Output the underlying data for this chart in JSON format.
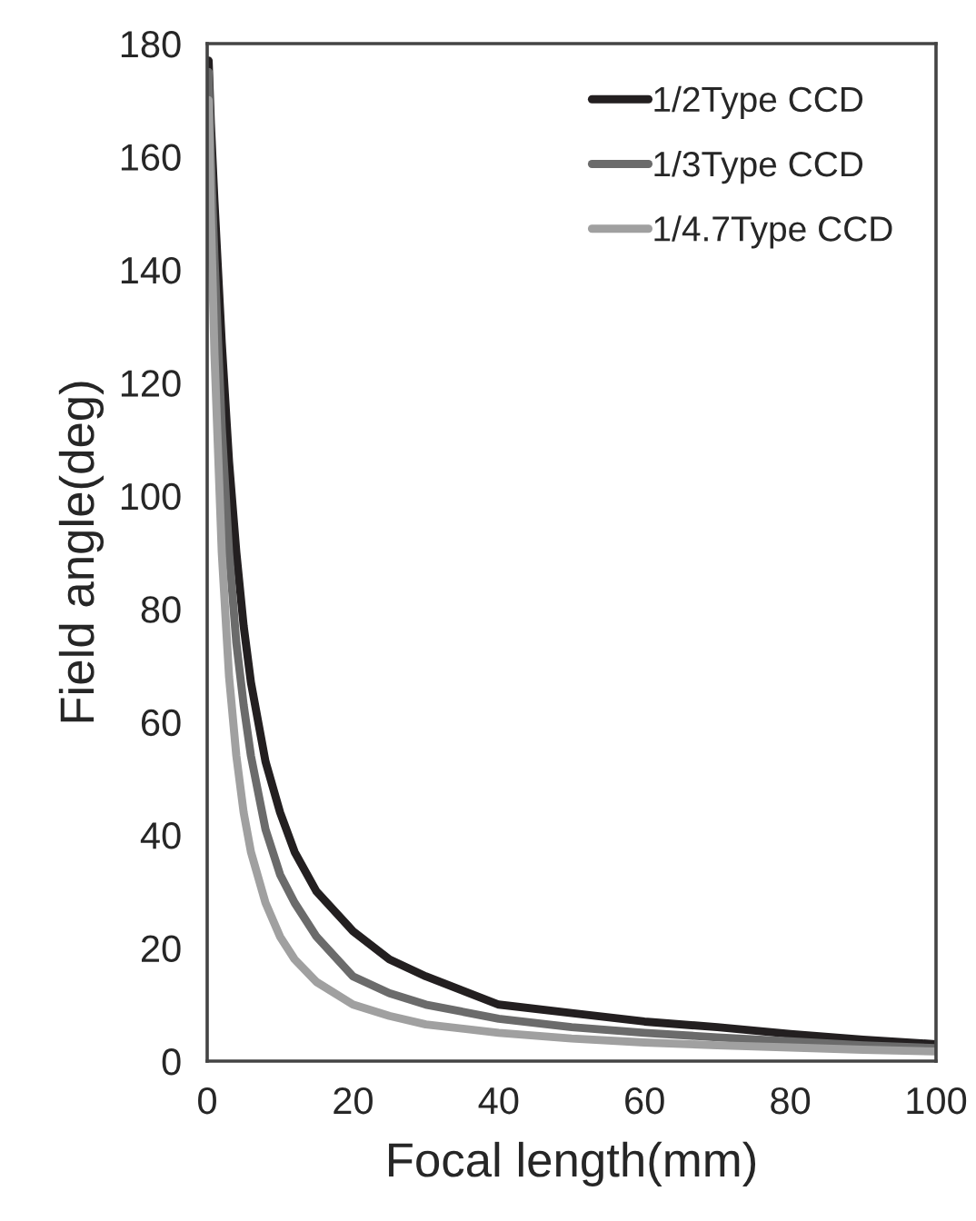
{
  "chart_data": {
    "type": "line",
    "xlabel": "Focal length(mm)",
    "ylabel": "Field angle(deg)",
    "x": [
      0.2,
      0.5,
      1,
      2,
      3,
      4,
      5,
      6,
      8,
      10,
      12,
      15,
      20,
      25,
      30,
      40,
      50,
      60,
      70,
      80,
      90,
      100
    ],
    "series": [
      {
        "name": "1/2Type CCD",
        "color": "#231f20",
        "values": [
          177,
          166,
          152,
          127,
          106,
          90,
          77,
          67,
          53,
          44,
          37,
          30,
          23,
          18,
          15,
          10,
          8.5,
          7,
          6,
          4.8,
          3.8,
          3
        ]
      },
      {
        "name": "1/3Type CCD",
        "color": "#6b6b6b",
        "values": [
          175,
          160,
          142,
          112,
          90,
          74,
          63,
          54,
          41,
          33,
          28,
          22,
          15,
          12,
          10,
          7.5,
          6,
          5,
          4.2,
          3.5,
          2.8,
          2.3
        ]
      },
      {
        "name": "1/4.7Type CCD",
        "color": "#a0a0a0",
        "values": [
          170,
          150,
          125,
          90,
          68,
          54,
          44,
          37,
          28,
          22,
          18,
          14,
          10,
          8,
          6.5,
          5,
          4,
          3.3,
          2.8,
          2.4,
          2,
          1.7
        ]
      }
    ],
    "xlim": [
      0,
      100
    ],
    "xticks": [
      0,
      20,
      40,
      60,
      80,
      100
    ],
    "ylim": [
      0,
      180
    ],
    "yticks": [
      0,
      20,
      40,
      60,
      80,
      100,
      120,
      140,
      160,
      180
    ],
    "legend": "top right",
    "grid": false,
    "marker": "none",
    "line_style": "solid"
  }
}
